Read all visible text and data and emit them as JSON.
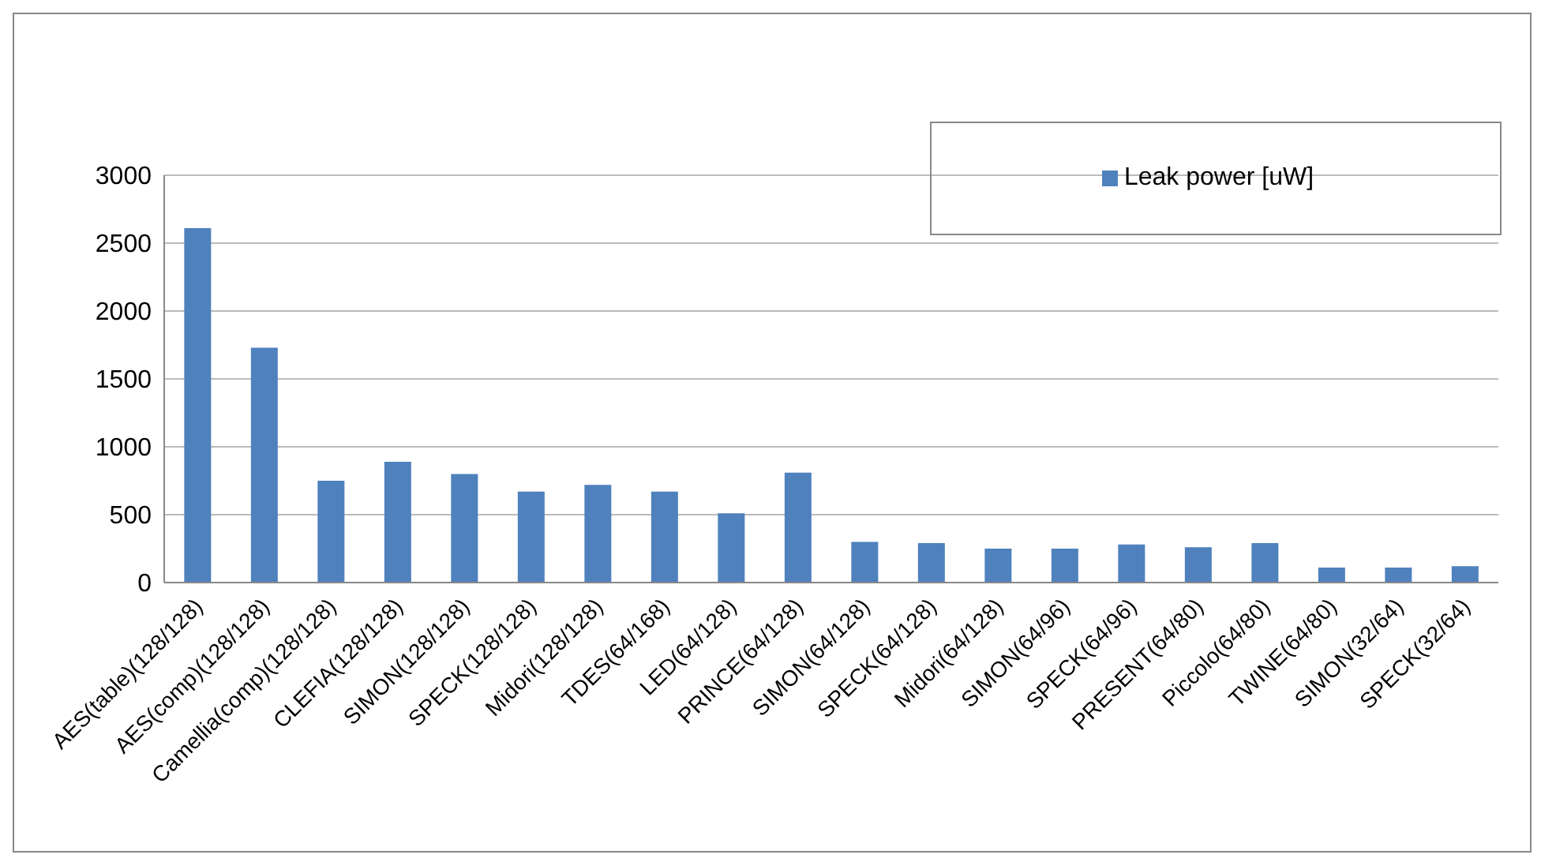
{
  "chart_data": {
    "type": "bar",
    "categories": [
      "AES(table)(128/128)",
      "AES(comp)(128/128)",
      "Camellia(comp)(128/128)",
      "CLEFIA(128/128)",
      "SIMON(128/128)",
      "SPECK(128/128)",
      "Midori(128/128)",
      "TDES(64/168)",
      "LED(64/128)",
      "PRINCE(64/128)",
      "SIMON(64/128)",
      "SPECK(64/128)",
      "Midori(64/128)",
      "SIMON(64/96)",
      "SPECK(64/96)",
      "PRESENT(64/80)",
      "Piccolo(64/80)",
      "TWINE(64/80)",
      "SIMON(32/64)",
      "SPECK(32/64)"
    ],
    "series": [
      {
        "name": "Leak power [uW]",
        "color": "#4f81bd",
        "values": [
          2610,
          1730,
          750,
          890,
          800,
          670,
          720,
          670,
          510,
          810,
          300,
          290,
          250,
          250,
          280,
          260,
          290,
          110,
          110,
          120
        ]
      }
    ],
    "ylim": [
      0,
      3000
    ],
    "yticks": [
      0,
      500,
      1000,
      1500,
      2000,
      2500,
      3000
    ],
    "grid": "y",
    "legend": "top right"
  }
}
